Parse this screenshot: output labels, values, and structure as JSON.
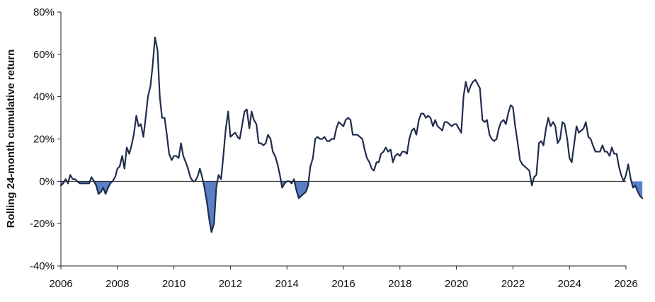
{
  "chart_data": {
    "type": "line",
    "title": "",
    "xlabel": "",
    "ylabel": "Rolling 24-month cumulative return",
    "xlim": [
      2006,
      2026
    ],
    "ylim": [
      -40,
      80
    ],
    "y_unit": "%",
    "x_ticks": [
      2006,
      2008,
      2010,
      2012,
      2014,
      2016,
      2018,
      2020,
      2022,
      2024,
      2026
    ],
    "x_tick_labels": [
      "2006",
      "2008",
      "2010",
      "2012",
      "2014",
      "2016",
      "2018",
      "2020",
      "2022",
      "2024",
      "2026"
    ],
    "y_ticks": [
      -40,
      -20,
      0,
      20,
      40,
      60,
      80
    ],
    "y_tick_labels": [
      "-40%",
      "-20%",
      "0%",
      "20%",
      "40%",
      "60%",
      "80%"
    ],
    "grid": false,
    "negative_fill": true,
    "colors": {
      "line": "#1f2d4d",
      "fill": "#5b7fc4",
      "axis": "#222222"
    },
    "series": [
      {
        "points": [
          [
            2006.0,
            -2
          ],
          [
            2006.08,
            -1
          ],
          [
            2006.17,
            1
          ],
          [
            2006.25,
            -1
          ],
          [
            2006.33,
            3
          ],
          [
            2006.42,
            1
          ],
          [
            2006.5,
            1
          ],
          [
            2006.58,
            0
          ],
          [
            2006.67,
            -1
          ],
          [
            2006.75,
            -1
          ],
          [
            2006.83,
            -1
          ],
          [
            2007.0,
            -1
          ],
          [
            2007.08,
            2
          ],
          [
            2007.17,
            0
          ],
          [
            2007.25,
            -2
          ],
          [
            2007.33,
            -6
          ],
          [
            2007.42,
            -5
          ],
          [
            2007.5,
            -3
          ],
          [
            2007.58,
            -6
          ],
          [
            2007.67,
            -3
          ],
          [
            2007.75,
            -1
          ],
          [
            2007.83,
            0
          ],
          [
            2007.92,
            2
          ],
          [
            2008.0,
            6
          ],
          [
            2008.08,
            7
          ],
          [
            2008.17,
            12
          ],
          [
            2008.25,
            6
          ],
          [
            2008.33,
            16
          ],
          [
            2008.42,
            13
          ],
          [
            2008.5,
            17
          ],
          [
            2008.58,
            22
          ],
          [
            2008.67,
            31
          ],
          [
            2008.75,
            26
          ],
          [
            2008.83,
            27
          ],
          [
            2008.92,
            21
          ],
          [
            2009.0,
            30
          ],
          [
            2009.08,
            40
          ],
          [
            2009.17,
            45
          ],
          [
            2009.25,
            55
          ],
          [
            2009.33,
            68
          ],
          [
            2009.42,
            62
          ],
          [
            2009.5,
            40
          ],
          [
            2009.58,
            30
          ],
          [
            2009.67,
            30
          ],
          [
            2009.75,
            22
          ],
          [
            2009.83,
            13
          ],
          [
            2009.92,
            10
          ],
          [
            2010.0,
            12
          ],
          [
            2010.08,
            12
          ],
          [
            2010.17,
            11
          ],
          [
            2010.25,
            18
          ],
          [
            2010.33,
            12
          ],
          [
            2010.42,
            9
          ],
          [
            2010.5,
            6
          ],
          [
            2010.58,
            2
          ],
          [
            2010.67,
            0
          ],
          [
            2010.75,
            0
          ],
          [
            2010.83,
            2
          ],
          [
            2010.92,
            6
          ],
          [
            2011.0,
            2
          ],
          [
            2011.08,
            -3
          ],
          [
            2011.17,
            -10
          ],
          [
            2011.25,
            -18
          ],
          [
            2011.33,
            -24
          ],
          [
            2011.42,
            -20
          ],
          [
            2011.5,
            -3
          ],
          [
            2011.58,
            3
          ],
          [
            2011.67,
            1
          ],
          [
            2011.75,
            12
          ],
          [
            2011.83,
            24
          ],
          [
            2011.92,
            33
          ],
          [
            2012.0,
            21
          ],
          [
            2012.08,
            22
          ],
          [
            2012.17,
            23
          ],
          [
            2012.25,
            21
          ],
          [
            2012.33,
            20
          ],
          [
            2012.42,
            27
          ],
          [
            2012.5,
            33
          ],
          [
            2012.58,
            34
          ],
          [
            2012.67,
            25
          ],
          [
            2012.75,
            33
          ],
          [
            2012.83,
            29
          ],
          [
            2012.92,
            27
          ],
          [
            2013.0,
            18
          ],
          [
            2013.08,
            18
          ],
          [
            2013.17,
            17
          ],
          [
            2013.25,
            18
          ],
          [
            2013.33,
            22
          ],
          [
            2013.42,
            20
          ],
          [
            2013.5,
            14
          ],
          [
            2013.58,
            12
          ],
          [
            2013.67,
            8
          ],
          [
            2013.75,
            3
          ],
          [
            2013.83,
            -3
          ],
          [
            2013.92,
            -1
          ],
          [
            2014.0,
            0
          ],
          [
            2014.08,
            0
          ],
          [
            2014.17,
            -1
          ],
          [
            2014.25,
            1
          ],
          [
            2014.33,
            -4
          ],
          [
            2014.42,
            -8
          ],
          [
            2014.5,
            -7
          ],
          [
            2014.58,
            -6
          ],
          [
            2014.67,
            -5
          ],
          [
            2014.75,
            -2
          ],
          [
            2014.83,
            7
          ],
          [
            2014.92,
            11
          ],
          [
            2015.0,
            20
          ],
          [
            2015.08,
            21
          ],
          [
            2015.17,
            20
          ],
          [
            2015.25,
            20
          ],
          [
            2015.33,
            21
          ],
          [
            2015.42,
            19
          ],
          [
            2015.5,
            19
          ],
          [
            2015.58,
            20
          ],
          [
            2015.67,
            20
          ],
          [
            2015.75,
            25
          ],
          [
            2015.83,
            28
          ],
          [
            2015.92,
            27
          ],
          [
            2016.0,
            26
          ],
          [
            2016.08,
            29
          ],
          [
            2016.17,
            30
          ],
          [
            2016.25,
            29
          ],
          [
            2016.33,
            22
          ],
          [
            2016.42,
            22
          ],
          [
            2016.5,
            22
          ],
          [
            2016.58,
            21
          ],
          [
            2016.67,
            20
          ],
          [
            2016.75,
            15
          ],
          [
            2016.83,
            11
          ],
          [
            2016.92,
            9
          ],
          [
            2017.0,
            6
          ],
          [
            2017.08,
            5
          ],
          [
            2017.17,
            9
          ],
          [
            2017.25,
            9
          ],
          [
            2017.33,
            13
          ],
          [
            2017.42,
            14
          ],
          [
            2017.5,
            16
          ],
          [
            2017.58,
            14
          ],
          [
            2017.67,
            15
          ],
          [
            2017.75,
            9
          ],
          [
            2017.83,
            12
          ],
          [
            2017.92,
            13
          ],
          [
            2018.0,
            12
          ],
          [
            2018.08,
            14
          ],
          [
            2018.17,
            14
          ],
          [
            2018.25,
            13
          ],
          [
            2018.33,
            20
          ],
          [
            2018.42,
            24
          ],
          [
            2018.5,
            25
          ],
          [
            2018.58,
            22
          ],
          [
            2018.67,
            29
          ],
          [
            2018.75,
            32
          ],
          [
            2018.83,
            32
          ],
          [
            2018.92,
            30
          ],
          [
            2019.0,
            31
          ],
          [
            2019.08,
            30
          ],
          [
            2019.17,
            26
          ],
          [
            2019.25,
            29
          ],
          [
            2019.33,
            26
          ],
          [
            2019.42,
            25
          ],
          [
            2019.5,
            24
          ],
          [
            2019.58,
            28
          ],
          [
            2019.67,
            28
          ],
          [
            2019.75,
            27
          ],
          [
            2019.83,
            26
          ],
          [
            2019.92,
            27
          ],
          [
            2020.0,
            27
          ],
          [
            2020.08,
            25
          ],
          [
            2020.17,
            23
          ],
          [
            2020.25,
            40
          ],
          [
            2020.33,
            47
          ],
          [
            2020.42,
            42
          ],
          [
            2020.5,
            45
          ],
          [
            2020.58,
            47
          ],
          [
            2020.67,
            48
          ],
          [
            2020.75,
            46
          ],
          [
            2020.83,
            44
          ],
          [
            2020.92,
            29
          ],
          [
            2021.0,
            28
          ],
          [
            2021.08,
            29
          ],
          [
            2021.17,
            22
          ],
          [
            2021.25,
            20
          ],
          [
            2021.33,
            19
          ],
          [
            2021.42,
            20
          ],
          [
            2021.5,
            25
          ],
          [
            2021.58,
            28
          ],
          [
            2021.67,
            29
          ],
          [
            2021.75,
            27
          ],
          [
            2021.83,
            32
          ],
          [
            2021.92,
            36
          ],
          [
            2022.0,
            35
          ],
          [
            2022.08,
            26
          ],
          [
            2022.17,
            18
          ],
          [
            2022.25,
            10
          ],
          [
            2022.33,
            8
          ],
          [
            2022.42,
            7
          ],
          [
            2022.5,
            6
          ],
          [
            2022.58,
            5
          ],
          [
            2022.67,
            -2
          ],
          [
            2022.75,
            2
          ],
          [
            2022.83,
            3
          ],
          [
            2022.92,
            18
          ],
          [
            2023.0,
            19
          ],
          [
            2023.08,
            17
          ],
          [
            2023.17,
            25
          ],
          [
            2023.25,
            30
          ],
          [
            2023.33,
            26
          ],
          [
            2023.42,
            28
          ],
          [
            2023.5,
            26
          ],
          [
            2023.58,
            18
          ],
          [
            2023.67,
            20
          ],
          [
            2023.75,
            28
          ],
          [
            2023.83,
            27
          ],
          [
            2023.92,
            20
          ],
          [
            2024.0,
            11
          ],
          [
            2024.08,
            9
          ],
          [
            2024.17,
            18
          ],
          [
            2024.25,
            26
          ],
          [
            2024.33,
            23
          ],
          [
            2024.42,
            24
          ],
          [
            2024.5,
            25
          ],
          [
            2024.58,
            28
          ],
          [
            2024.67,
            21
          ],
          [
            2024.75,
            20
          ],
          [
            2024.83,
            17
          ],
          [
            2024.92,
            14
          ],
          [
            2025.0,
            14
          ],
          [
            2025.08,
            14
          ],
          [
            2025.17,
            17
          ],
          [
            2025.25,
            14
          ],
          [
            2025.33,
            14
          ],
          [
            2025.42,
            12
          ],
          [
            2025.5,
            16
          ],
          [
            2025.58,
            13
          ],
          [
            2025.67,
            13
          ],
          [
            2025.75,
            7
          ],
          [
            2025.83,
            3
          ],
          [
            2025.92,
            0
          ],
          [
            2026.0,
            3
          ],
          [
            2026.08,
            8
          ],
          [
            2026.17,
            1
          ],
          [
            2026.25,
            -3
          ],
          [
            2026.33,
            -2
          ],
          [
            2026.42,
            -5
          ],
          [
            2026.5,
            -7
          ],
          [
            2026.58,
            -8
          ]
        ]
      }
    ]
  }
}
